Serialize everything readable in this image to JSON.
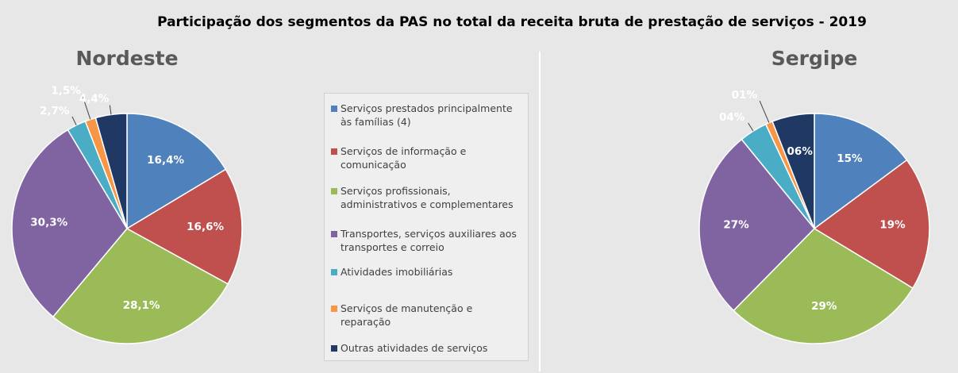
{
  "chart_data": {
    "type": "pie",
    "title": "Participação dos segmentos da PAS no total da receita bruta de prestação de serviços - 2019",
    "categories": [
      "Serviços prestados principalmente às famílias (4)",
      "Serviços de informação e comunicação",
      "Serviços profissionais, administrativos e complementares",
      "Transportes, serviços auxiliares aos transportes e correio",
      "Atividades imobiliárias",
      "Serviços de manutenção e reparação",
      "Outras atividades de serviços"
    ],
    "colors": [
      "#4f81bd",
      "#c0504d",
      "#9bbb59",
      "#8064a2",
      "#4bacc6",
      "#f79646",
      "#1f3864"
    ],
    "charts": [
      {
        "title": "Nordeste",
        "values": [
          16.4,
          16.6,
          28.1,
          30.3,
          2.7,
          1.5,
          4.4
        ],
        "value_labels": [
          "16,4%",
          "16,6%",
          "28,1%",
          "30,3%",
          "2,7%",
          "1,5%",
          "4,4%"
        ]
      },
      {
        "title": "Sergipe",
        "values": [
          15,
          19,
          29,
          27,
          4,
          1,
          6
        ],
        "value_labels": [
          "15%",
          "19%",
          "29%",
          "27%",
          "04%",
          "01%",
          "06%"
        ]
      }
    ]
  }
}
